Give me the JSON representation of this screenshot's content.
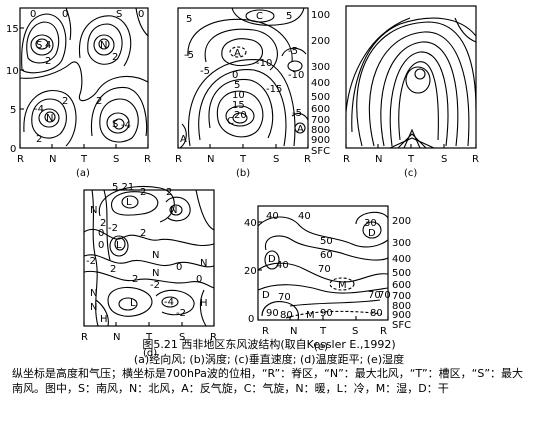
{
  "panels": {
    "a": {
      "label": "(a)",
      "yticks": [
        "15",
        "10",
        "5",
        "0"
      ],
      "xticks": [
        "R",
        "N",
        "T",
        "S",
        "R"
      ],
      "annotations": [
        "0",
        "0",
        "S",
        "0",
        "S",
        "4",
        "N",
        "2",
        "2",
        "2",
        "2",
        "-4",
        "N",
        "S",
        "-4",
        "2"
      ]
    },
    "b": {
      "label": "(b)",
      "pressure": [
        "100",
        "200",
        "300",
        "400",
        "500",
        "600",
        "700",
        "800",
        "900",
        "SFC"
      ],
      "xticks": [
        "R",
        "N",
        "T",
        "S",
        "R"
      ],
      "annotations": [
        "5",
        "C",
        "5",
        "-5",
        "-10",
        "-5",
        "A",
        "-10",
        "-5",
        "0",
        "5",
        "10",
        "-15",
        "15",
        "20",
        "C",
        "A",
        "A",
        "-5"
      ]
    },
    "c": {
      "label": "(c)",
      "xticks": [
        "R",
        "N",
        "T",
        "S",
        "R"
      ]
    },
    "d": {
      "label": "(d)",
      "top_annotation": "5.21",
      "xticks": [
        "R",
        "N",
        "T",
        "S",
        "R"
      ],
      "annotations": [
        "2",
        "2",
        "N",
        "L",
        "N",
        "2",
        "0",
        "0",
        "-2",
        "2",
        "L",
        "N",
        "-2",
        "0",
        "2",
        "N",
        "N",
        "-2",
        "2",
        "N",
        "L",
        "-4",
        "N",
        "H",
        "H",
        "-2",
        "0"
      ]
    },
    "e": {
      "label": "(e)",
      "pressure": [
        "200",
        "300",
        "400",
        "500",
        "600",
        "700",
        "800",
        "900",
        "SFC"
      ],
      "yticks": [
        "40",
        "20",
        "0"
      ],
      "xticks": [
        "R",
        "N",
        "T",
        "S",
        "R"
      ],
      "annotations": [
        "40",
        "40",
        "30",
        "D",
        "50",
        "D",
        "40",
        "60",
        "70",
        "M",
        "70",
        "70",
        "D",
        "70",
        "90",
        "80",
        "M",
        "90",
        "80"
      ]
    }
  },
  "caption": {
    "title": "图5.21  西非地区东风波结构(取自Kessler E.,1992)",
    "subtitle": "(a)经向风; (b)涡度; (c)垂直速度; (d)温度距平; (e)湿度",
    "legend": "纵坐标是高度和气压；横坐标是700hPa波的位相，“R”：脊区，“N”：最大北风，“T”：槽区，“S”：最大南风。图中，S：南风，N：北风，A：反气旋，C：气旋，N：暖，L：冷，M：湿，D：干"
  }
}
